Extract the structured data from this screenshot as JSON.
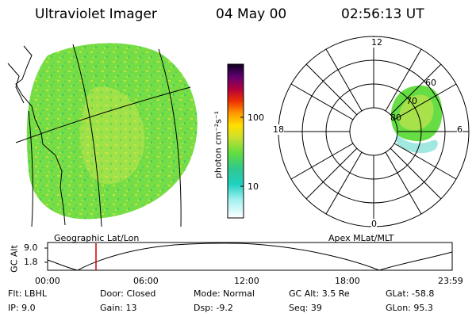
{
  "header": {
    "title": "Ultraviolet Imager",
    "date": "04 May 00",
    "time": "02:56:13 UT"
  },
  "left_panel": {
    "caption": "Geographic Lat/Lon"
  },
  "colorbar": {
    "label": "photon cm⁻²s⁻¹",
    "tick_high": "100",
    "tick_low": "10"
  },
  "polar_panel": {
    "caption": "Apex MLat/MLT",
    "mlt_top": "12",
    "mlt_left": "18",
    "mlt_right": "6",
    "mlt_bottom": "0",
    "lat_60": "60",
    "lat_70": "70",
    "lat_80": "80"
  },
  "altitude_plot": {
    "ylabel": "GC Alt",
    "ytick_high": "9.0",
    "ytick_low": "1.8",
    "xticks": [
      "00:00",
      "06:00",
      "12:00",
      "18:00",
      "23:59"
    ]
  },
  "info": {
    "flt": "Flt: LBHL",
    "ip": "IP:  9.0",
    "door": "Door: Closed",
    "gain": "Gain: 13",
    "mode": "Mode: Normal",
    "dsp": "Dsp:     -9.2",
    "gc_alt": "GC Alt: 3.5 Re",
    "seq": "Seq: 39",
    "glat": "GLat:  -58.8",
    "glon": "GLon:  95.3"
  },
  "colors": {
    "aurora_green": "#66dd44",
    "aurora_yellow": "#c8e040",
    "aurora_cyan": "#30d0c0",
    "time_marker": "#cc0000"
  }
}
